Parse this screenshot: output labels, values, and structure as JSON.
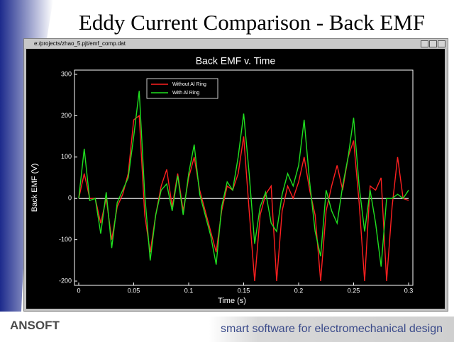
{
  "slide": {
    "title": "Eddy Current Comparison - Back EMF",
    "window_title": "e:/projects/zhao_5.pjt/emf_comp.dat",
    "logo": "ANSOFT",
    "tagline": "smart software for electromechanical design"
  },
  "chart_data": {
    "type": "line",
    "title": "Back EMF v. Time",
    "x_label": "Time (s)",
    "y_label": "Back EMF (V)",
    "x": [
      0,
      0.005,
      0.01,
      0.015,
      0.02,
      0.025,
      0.03,
      0.035,
      0.04,
      0.045,
      0.05,
      0.055,
      0.06,
      0.065,
      0.07,
      0.075,
      0.08,
      0.085,
      0.09,
      0.095,
      0.1,
      0.105,
      0.11,
      0.115,
      0.12,
      0.125,
      0.13,
      0.135,
      0.14,
      0.145,
      0.15,
      0.155,
      0.16,
      0.165,
      0.17,
      0.175,
      0.18,
      0.185,
      0.19,
      0.195,
      0.2,
      0.205,
      0.21,
      0.215,
      0.22,
      0.225,
      0.23,
      0.235,
      0.24,
      0.245,
      0.25,
      0.255,
      0.26,
      0.265,
      0.27,
      0.275,
      0.28,
      0.285,
      0.29,
      0.295,
      0.3
    ],
    "series": [
      {
        "name": "Without Al Ring",
        "color": "#ff2020",
        "values": [
          0,
          60,
          0,
          0,
          -60,
          0,
          -100,
          -20,
          10,
          60,
          190,
          200,
          -40,
          -130,
          -40,
          30,
          70,
          -20,
          60,
          -30,
          50,
          100,
          20,
          -30,
          -80,
          -130,
          -30,
          30,
          20,
          60,
          150,
          -30,
          -200,
          -40,
          10,
          30,
          -200,
          -30,
          30,
          0,
          40,
          100,
          20,
          -40,
          -200,
          -30,
          30,
          80,
          20,
          100,
          140,
          -10,
          -200,
          30,
          20,
          50,
          -200,
          -20,
          100,
          0,
          -5
        ]
      },
      {
        "name": "With Al Ring",
        "color": "#20e020",
        "values": [
          0,
          120,
          -5,
          0,
          -85,
          15,
          -120,
          -10,
          20,
          50,
          150,
          260,
          10,
          -150,
          -40,
          20,
          35,
          -30,
          55,
          -40,
          60,
          130,
          10,
          -40,
          -90,
          -160,
          -20,
          40,
          20,
          100,
          205,
          60,
          -110,
          -20,
          15,
          -60,
          -80,
          10,
          60,
          30,
          80,
          190,
          40,
          -80,
          -140,
          20,
          -30,
          -60,
          30,
          100,
          195,
          30,
          -80,
          20,
          -60,
          -165,
          0,
          0,
          10,
          0,
          20
        ]
      }
    ],
    "xlim": [
      0,
      0.3
    ],
    "xticks": [
      0,
      0.05,
      0.1,
      0.15,
      0.2,
      0.25,
      0.3
    ],
    "ylim": [
      -200,
      300
    ],
    "yticks": [
      -200,
      -100,
      0,
      100,
      200,
      300
    ]
  }
}
